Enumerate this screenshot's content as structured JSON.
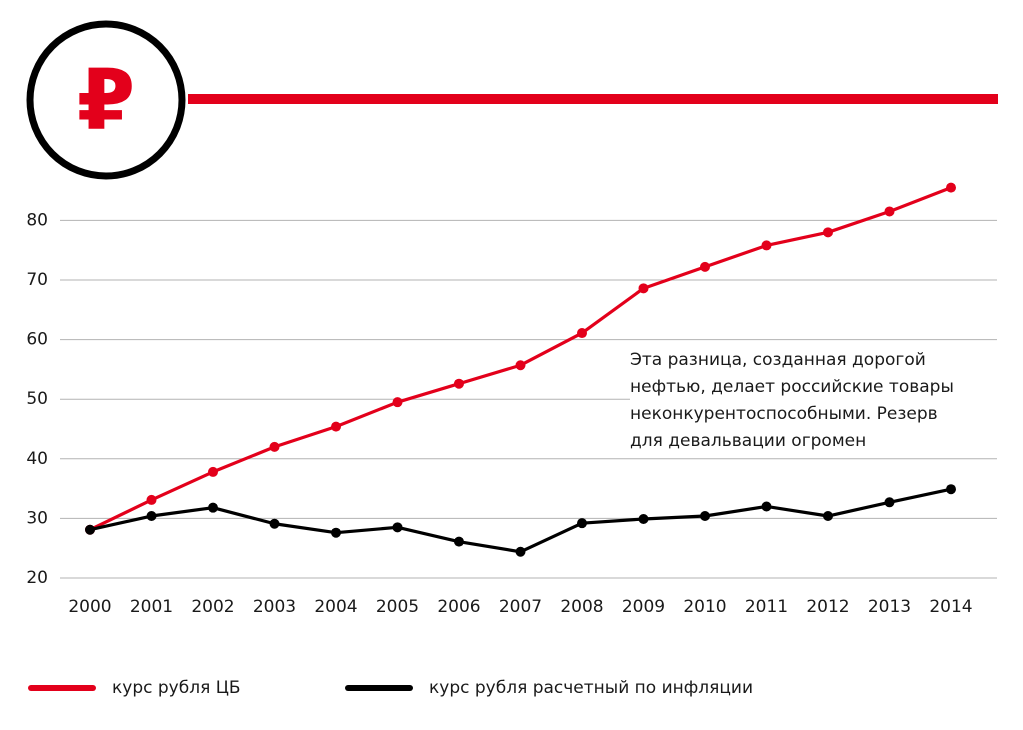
{
  "logo": {
    "symbol": "₽",
    "icon": "ruble-icon"
  },
  "colors": {
    "red": "#e3001b",
    "black": "#000000",
    "grid": "#b3b3b3",
    "text": "#1a1a1a"
  },
  "annotation": {
    "lines": [
      "Эта разница, созданная дорогой",
      "нефтью, делает российские товары",
      "неконкурентоспособными. Резерв",
      "для девальвации огромен"
    ]
  },
  "legend": {
    "cb": "курс рубля ЦБ",
    "inflation": "курс рубля расчетный по инфляции"
  },
  "chart_data": {
    "type": "line",
    "title": "",
    "xlabel": "",
    "ylabel": "",
    "categories": [
      "2000",
      "2001",
      "2002",
      "2003",
      "2004",
      "2005",
      "2006",
      "2007",
      "2008",
      "2009",
      "2010",
      "2011",
      "2012",
      "2013",
      "2014"
    ],
    "yticks": [
      20,
      30,
      40,
      50,
      60,
      70,
      80
    ],
    "ylim": [
      20,
      85
    ],
    "grid": true,
    "legend_position": "bottom-left",
    "series": [
      {
        "name": "курс рубля ЦБ",
        "color": "#e3001b",
        "values": [
          28.1,
          33.1,
          37.8,
          42.0,
          45.4,
          49.5,
          52.6,
          55.7,
          61.1,
          68.6,
          72.2,
          75.8,
          78.0,
          81.5,
          85.5
        ]
      },
      {
        "name": "курс рубля расчетный по инфляции",
        "color": "#000000",
        "values": [
          28.1,
          30.4,
          31.8,
          29.1,
          27.6,
          28.5,
          26.1,
          24.4,
          29.2,
          29.9,
          30.4,
          32.0,
          30.4,
          32.7,
          34.9
        ]
      }
    ]
  }
}
